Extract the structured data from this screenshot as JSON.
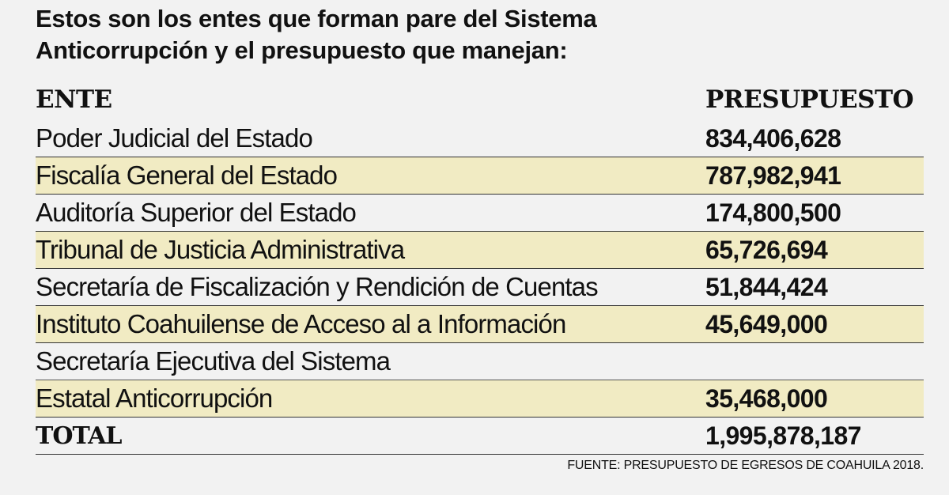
{
  "title": [
    "Estos son los entes que forman pare del Sistema",
    "Anticorrupción y el presupuesto que manejan:"
  ],
  "headers": {
    "ente": "ENTE",
    "presupuesto": "PRESUPUESTO"
  },
  "rows": [
    {
      "ente": "Poder Judicial del Estado",
      "presupuesto": "834,406,628"
    },
    {
      "ente": "Fiscalía General del Estado",
      "presupuesto": "787,982,941"
    },
    {
      "ente": "Auditoría Superior del Estado",
      "presupuesto": "174,800,500"
    },
    {
      "ente": "Tribunal de Justicia Administrativa",
      "presupuesto": "65,726,694"
    },
    {
      "ente": "Secretaría de Fiscalización y Rendición de Cuentas",
      "presupuesto": "51,844,424"
    },
    {
      "ente": "Instituto Coahuilense de Acceso al a Información",
      "presupuesto": "45,649,000"
    },
    {
      "ente": "Secretaría Ejecutiva del Sistema",
      "presupuesto": ""
    },
    {
      "ente": "Estatal Anticorrupción",
      "presupuesto": "35,468,000"
    }
  ],
  "total": {
    "label": "TOTAL",
    "value": "1,995,878,187"
  },
  "source": "FUENTE: PRESUPUESTO DE EGRESOS DE COAHUILA 2018.",
  "colors": {
    "highlight": "#f1ebc3",
    "background": "#f2f2f2"
  }
}
